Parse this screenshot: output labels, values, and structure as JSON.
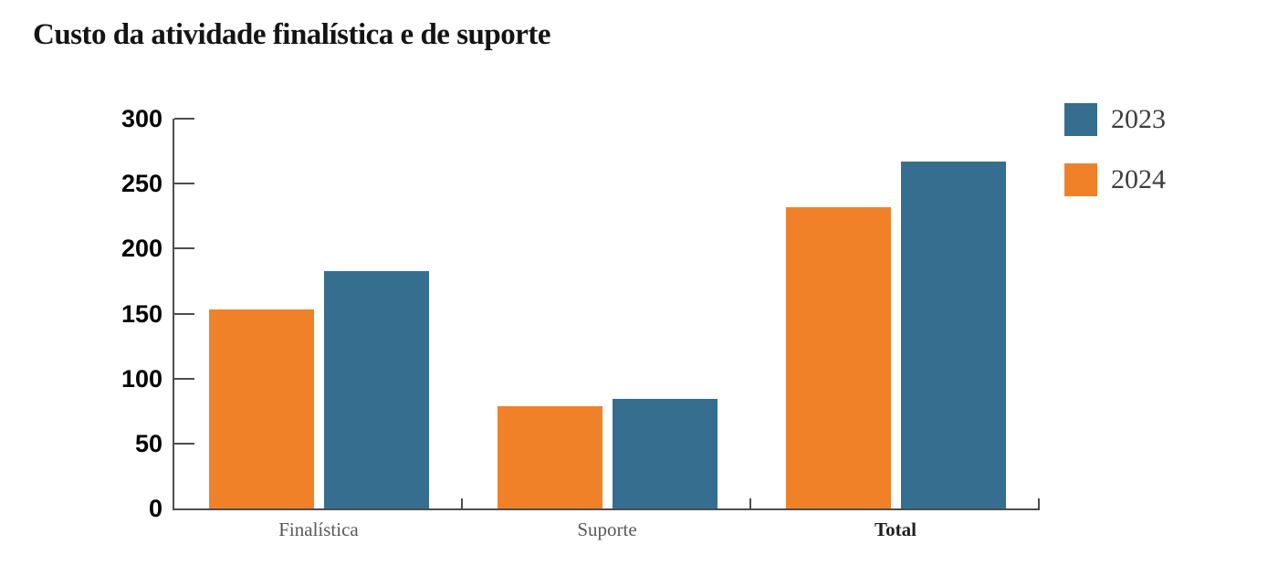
{
  "chart_data": {
    "type": "bar",
    "title": "Custo da atividade finalística e de suporte",
    "categories": [
      "Finalística",
      "Suporte",
      "Total"
    ],
    "bold_categories": [
      "Total"
    ],
    "series": [
      {
        "name": "2023",
        "color": "#356E8E",
        "values": [
          183,
          84,
          267
        ]
      },
      {
        "name": "2024",
        "color": "#F08128",
        "values": [
          153,
          79,
          232
        ]
      }
    ],
    "bar_draw_order": [
      "2024",
      "2023"
    ],
    "ylim": [
      0,
      300
    ],
    "yticks": [
      0,
      50,
      100,
      150,
      200,
      250,
      300
    ],
    "grid": false,
    "legend": {
      "position": "top-right",
      "items": [
        "2023",
        "2024"
      ]
    },
    "xlabel": "",
    "ylabel": "",
    "colors": {
      "axis": "#4D4D4D",
      "tick_label": "#000000",
      "category_label": "#595959",
      "bold_category_label": "#1F1F1F",
      "legend_text": "#3D3D3D",
      "title": "#141414",
      "background": "#FFFFFF"
    }
  }
}
